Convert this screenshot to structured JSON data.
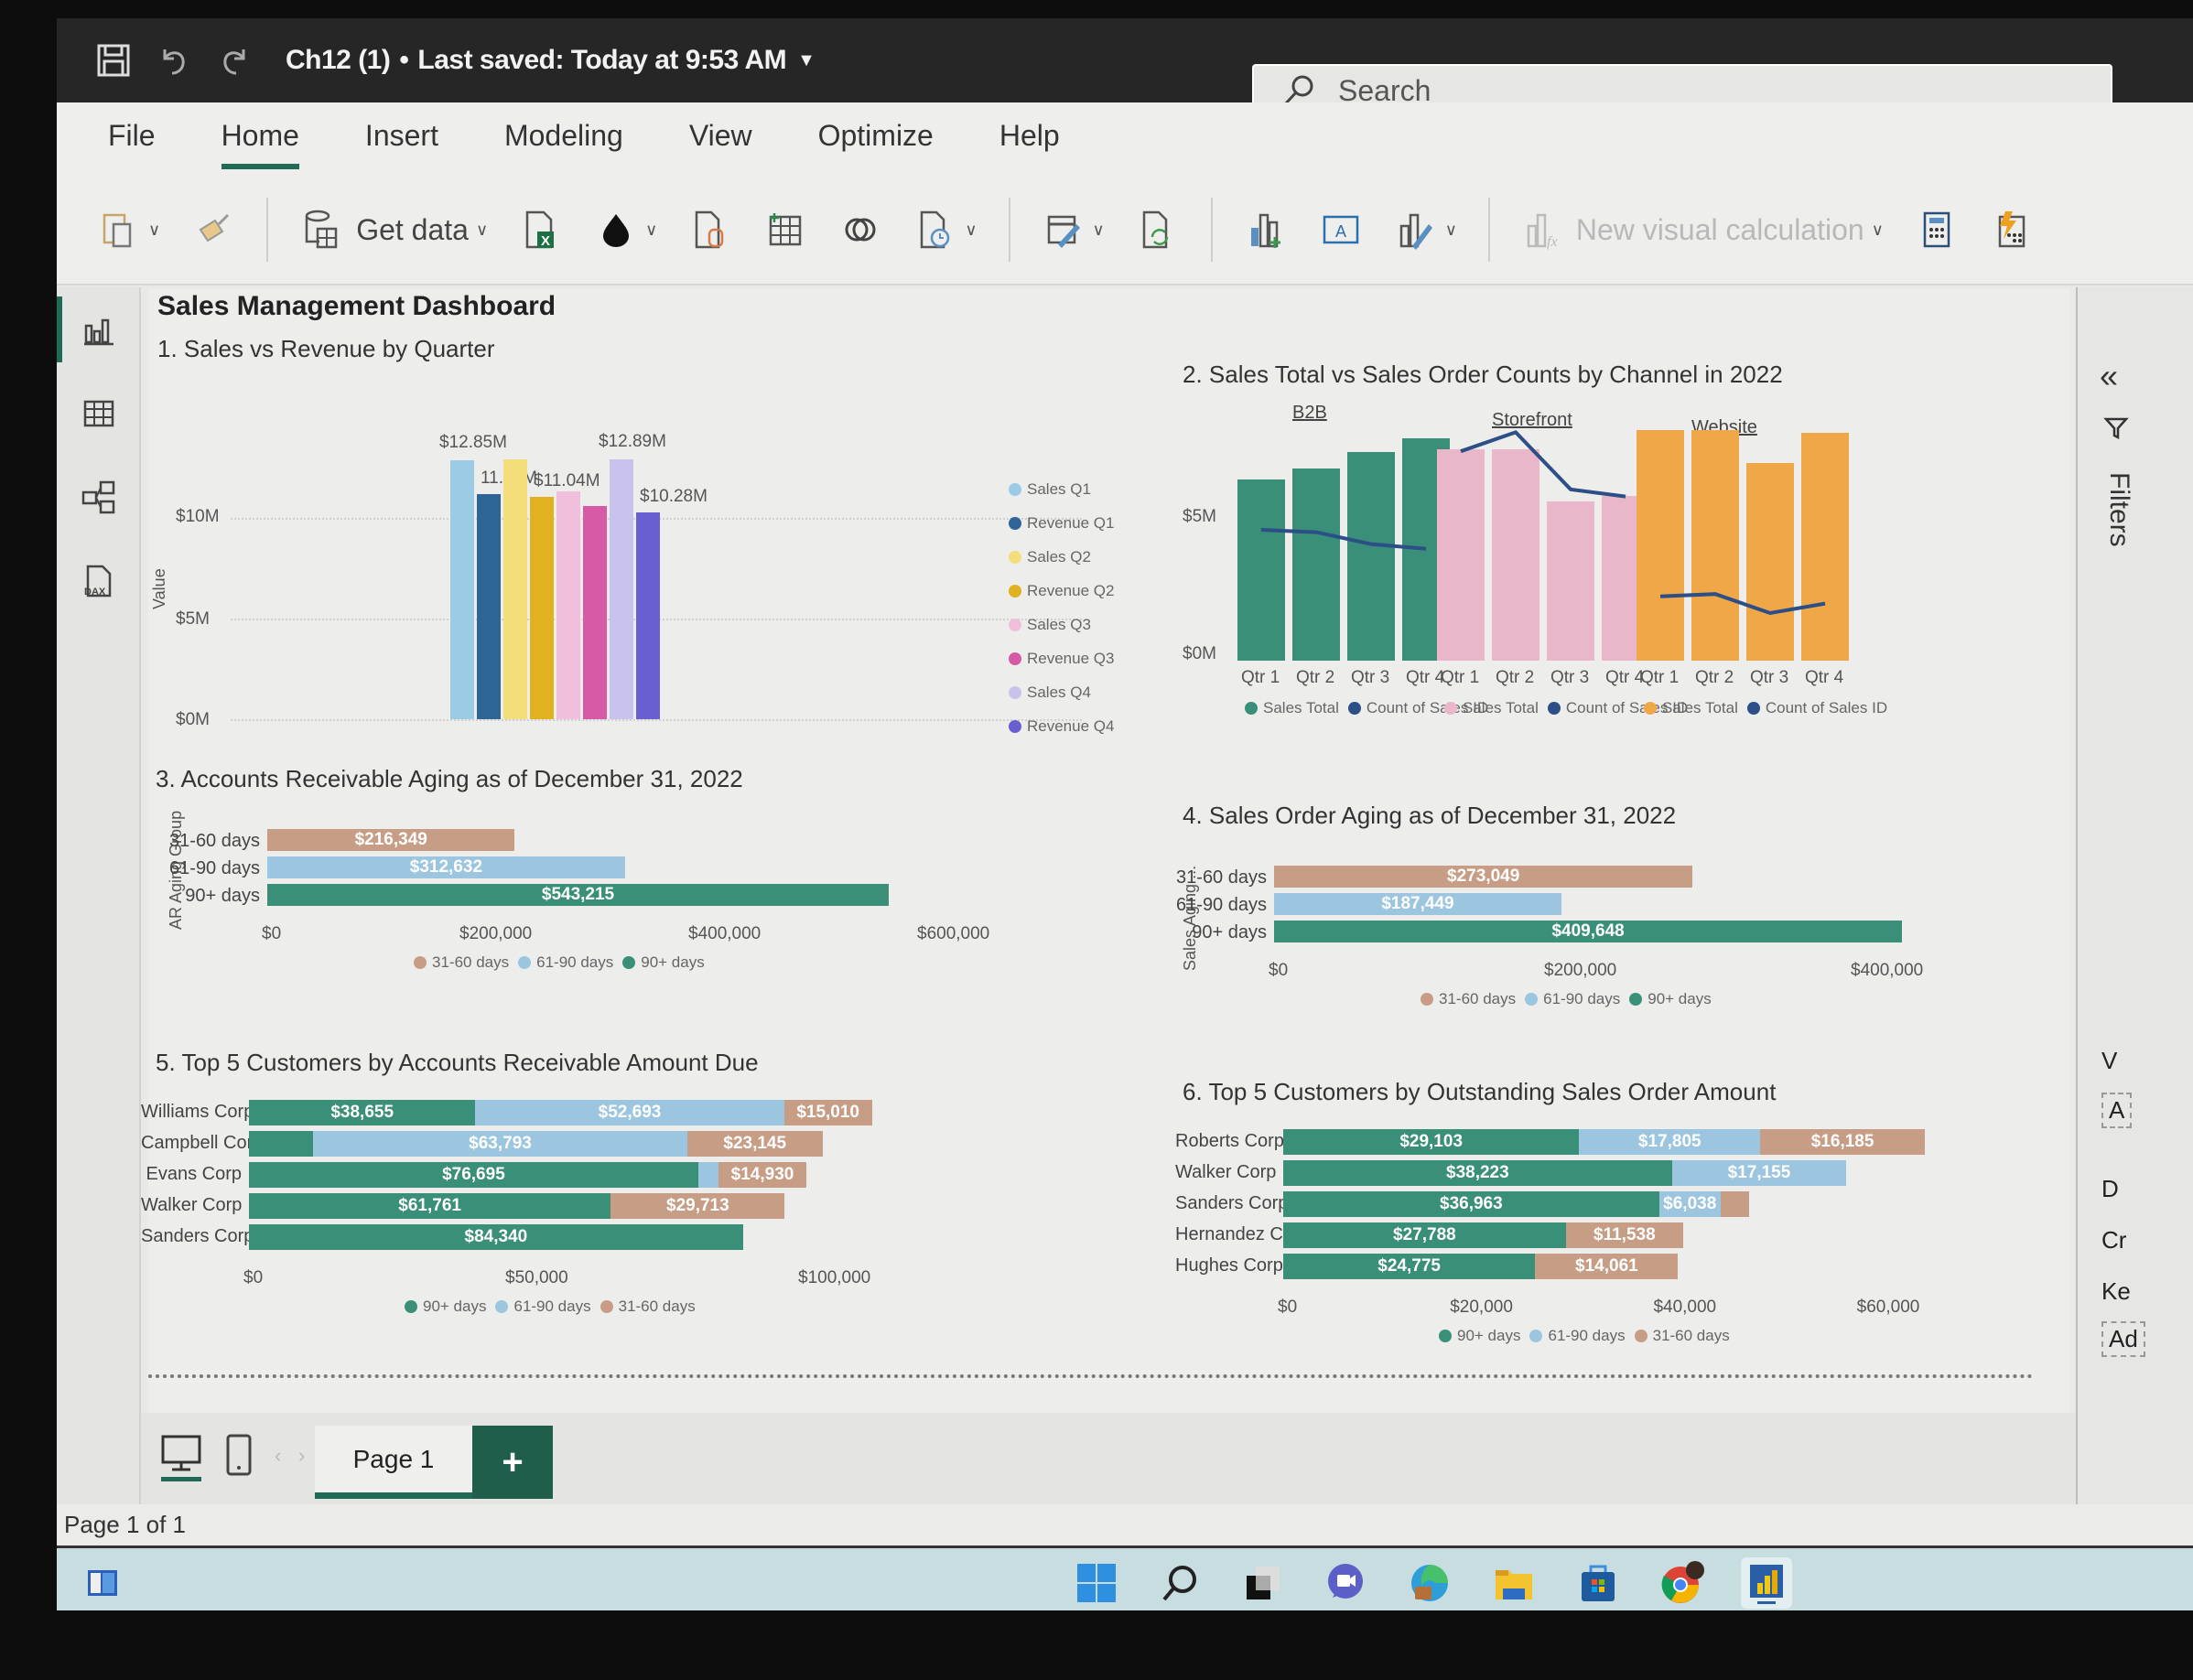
{
  "window": {
    "title": "Ch12 (1)",
    "separator": "•",
    "saved_status": "Last saved: Today at 9:53 AM",
    "search_placeholder": "Search"
  },
  "menu": {
    "tabs": [
      "File",
      "Home",
      "Insert",
      "Modeling",
      "View",
      "Optimize",
      "Help"
    ],
    "active": "Home"
  },
  "ribbon": {
    "get_data_label": "Get data",
    "new_visual_calc_label": "New visual calculation",
    "icons": [
      "paste-icon",
      "format-painter-icon",
      "get-data-icon",
      "excel-workbook-icon",
      "onelake-icon",
      "sql-server-icon",
      "enter-data-icon",
      "dataverse-icon",
      "recent-sources-icon",
      "transform-data-icon",
      "refresh-icon",
      "new-visual-icon",
      "text-box-icon",
      "more-visuals-icon",
      "new-visual-calculation-icon",
      "new-measure-icon",
      "quick-measure-icon"
    ]
  },
  "left_rail": {
    "items": [
      "report-view-icon",
      "table-view-icon",
      "model-view-icon",
      "dax-query-view-icon"
    ]
  },
  "report": {
    "title": "Sales Management Dashboard"
  },
  "filters_pane": {
    "label": "Filters",
    "partial_items": [
      "V",
      "A",
      "D",
      "Cr",
      "Ke",
      "Ad"
    ]
  },
  "page_bar": {
    "page_tab": "Page 1",
    "add_label": "+",
    "status": "Page 1 of 1"
  },
  "taskbar": {
    "icons": [
      "task-view-icon",
      "windows-start-icon",
      "search-icon",
      "file-explorer-dark-icon",
      "teams-chat-icon",
      "edge-icon",
      "folder-icon",
      "microsoft-store-icon",
      "chrome-icon",
      "power-bi-icon"
    ]
  },
  "colors": {
    "accent": "#1f6b56",
    "teal": "#3a8f78",
    "light_blue": "#9cc6e0",
    "tan": "#c79e85",
    "pink": "#eab7ca",
    "orange": "#f0a748"
  },
  "chart_data": [
    {
      "id": "chart1",
      "type": "bar",
      "title": "1. Sales vs Revenue by Quarter",
      "ylabel": "Value",
      "yticks": [
        "$0M",
        "$5M",
        "$10M"
      ],
      "ylim": [
        0,
        13
      ],
      "series": [
        {
          "name": "Sales Q1",
          "value": 12.85,
          "label": "$12.85M",
          "color": "#9ccbe6"
        },
        {
          "name": "Revenue Q1",
          "value": 11.16,
          "label": "11.16M",
          "color": "#2e6496"
        },
        {
          "name": "Sales Q2",
          "value": 12.9,
          "label": "",
          "color": "#f4de7c"
        },
        {
          "name": "Revenue Q2",
          "value": 11.04,
          "label": "$11.04M",
          "color": "#e0b21f"
        },
        {
          "name": "Sales Q3",
          "value": 11.3,
          "label": "",
          "color": "#efbfdc"
        },
        {
          "name": "Revenue Q3",
          "value": 10.6,
          "label": "",
          "color": "#d65aa5"
        },
        {
          "name": "Sales Q4",
          "value": 12.89,
          "label": "$12.89M",
          "color": "#c9c2ec"
        },
        {
          "name": "Revenue Q4",
          "value": 10.28,
          "label": "$10.28M",
          "color": "#6a5fd0"
        }
      ],
      "legend": [
        "Sales Q1",
        "Revenue Q1",
        "Sales Q2",
        "Revenue Q2",
        "Sales Q3",
        "Revenue Q3",
        "Sales Q4",
        "Revenue Q4"
      ],
      "legend_position": "right"
    },
    {
      "id": "chart2",
      "type": "bar",
      "title": "2. Sales Total vs Sales Order Counts by Channel in 2022",
      "yticks": [
        "$0M",
        "$5M"
      ],
      "categories": [
        "Qtr 1",
        "Qtr 2",
        "Qtr 3",
        "Qtr 4"
      ],
      "panels": [
        {
          "name": "B2B",
          "bar_color": "#3a8f78",
          "sales_total_m": [
            6.6,
            7.0,
            7.6,
            8.1
          ],
          "count_line_rel": [
            0.55,
            0.54,
            0.49,
            0.47
          ]
        },
        {
          "name": "Storefront",
          "bar_color": "#eab7ca",
          "sales_total_m": [
            7.7,
            7.7,
            5.8,
            6.0
          ],
          "count_line_rel": [
            0.88,
            0.96,
            0.72,
            0.69
          ]
        },
        {
          "name": "Website",
          "bar_color": "#f0a748",
          "sales_total_m": [
            8.4,
            8.4,
            7.2,
            8.3
          ],
          "count_line_rel": [
            0.27,
            0.28,
            0.2,
            0.24
          ]
        }
      ],
      "legend": [
        "Sales Total",
        "Count of Sales ID"
      ],
      "line_color": "#2b4f86"
    },
    {
      "id": "chart3",
      "type": "bar",
      "orientation": "horizontal",
      "title": "3. Accounts Receivable Aging as of December 31, 2022",
      "ylabel": "AR Aging Group",
      "categories": [
        "31-60 days",
        "61-90 days",
        "90+ days"
      ],
      "values": [
        216349,
        312632,
        543215
      ],
      "labels": [
        "$216,349",
        "$312,632",
        "$543,215"
      ],
      "colors": [
        "#c79e85",
        "#9cc6e0",
        "#3a8f78"
      ],
      "xticks": [
        "$0",
        "$200,000",
        "$400,000",
        "$600,000"
      ],
      "xlim": [
        0,
        600000
      ],
      "legend": [
        "31-60 days",
        "61-90 days",
        "90+ days"
      ]
    },
    {
      "id": "chart4",
      "type": "bar",
      "orientation": "horizontal",
      "title": "4. Sales Order Aging as of December 31, 2022",
      "ylabel": "Sales Aging ...",
      "categories": [
        "31-60 days",
        "61-90 days",
        "90+ days"
      ],
      "values": [
        273049,
        187449,
        409648
      ],
      "labels": [
        "$273,049",
        "$187,449",
        "$409,648"
      ],
      "colors": [
        "#c79e85",
        "#9cc6e0",
        "#3a8f78"
      ],
      "xticks": [
        "$0",
        "$200,000",
        "$400,000"
      ],
      "xlim": [
        0,
        400000
      ],
      "legend": [
        "31-60 days",
        "61-90 days",
        "90+ days"
      ]
    },
    {
      "id": "chart5",
      "type": "bar",
      "orientation": "horizontal",
      "stacked": true,
      "title": "5. Top 5 Customers by Accounts Receivable Amount Due",
      "categories": [
        "Williams Corp",
        "Campbell Corp",
        "Evans Corp",
        "Walker Corp",
        "Sanders Corp"
      ],
      "series": [
        {
          "name": "90+ days",
          "color": "#3a8f78",
          "values": [
            38655,
            11000,
            76695,
            61761,
            84340
          ],
          "labels": [
            "$38,655",
            "",
            "$76,695",
            "$61,761",
            "$84,340"
          ]
        },
        {
          "name": "61-90 days",
          "color": "#9cc6e0",
          "values": [
            52693,
            63793,
            3500,
            0,
            0
          ],
          "labels": [
            "$52,693",
            "$63,793",
            "",
            "",
            ""
          ]
        },
        {
          "name": "31-60 days",
          "color": "#c79e85",
          "values": [
            15010,
            23145,
            14930,
            29713,
            0
          ],
          "labels": [
            "$15,010",
            "$23,145",
            "$14,930",
            "$29,713",
            ""
          ]
        }
      ],
      "xticks": [
        "$0",
        "$50,000",
        "$100,000"
      ],
      "xlim": [
        0,
        100000
      ],
      "legend": [
        "90+ days",
        "61-90 days",
        "31-60 days"
      ]
    },
    {
      "id": "chart6",
      "type": "bar",
      "orientation": "horizontal",
      "stacked": true,
      "title": "6. Top 5 Customers by Outstanding Sales Order Amount",
      "categories": [
        "Roberts Corp",
        "Walker Corp",
        "Sanders Corp",
        "Hernandez Corp",
        "Hughes Corp"
      ],
      "series": [
        {
          "name": "90+ days",
          "color": "#3a8f78",
          "values": [
            29103,
            38223,
            36963,
            27788,
            24775
          ],
          "labels": [
            "$29,103",
            "$38,223",
            "$36,963",
            "$27,788",
            "$24,775"
          ]
        },
        {
          "name": "61-90 days",
          "color": "#9cc6e0",
          "values": [
            17805,
            17155,
            6038,
            0,
            0
          ],
          "labels": [
            "$17,805",
            "$17,155",
            "$6,038",
            "",
            ""
          ]
        },
        {
          "name": "31-60 days",
          "color": "#c79e85",
          "values": [
            16185,
            0,
            2800,
            11538,
            14061
          ],
          "labels": [
            "$16,185",
            "",
            "",
            "$11,538",
            "$14,061"
          ]
        }
      ],
      "xticks": [
        "$0",
        "$20,000",
        "$40,000",
        "$60,000"
      ],
      "xlim": [
        0,
        63000
      ],
      "legend": [
        "90+ days",
        "61-90 days",
        "31-60 days"
      ]
    }
  ]
}
